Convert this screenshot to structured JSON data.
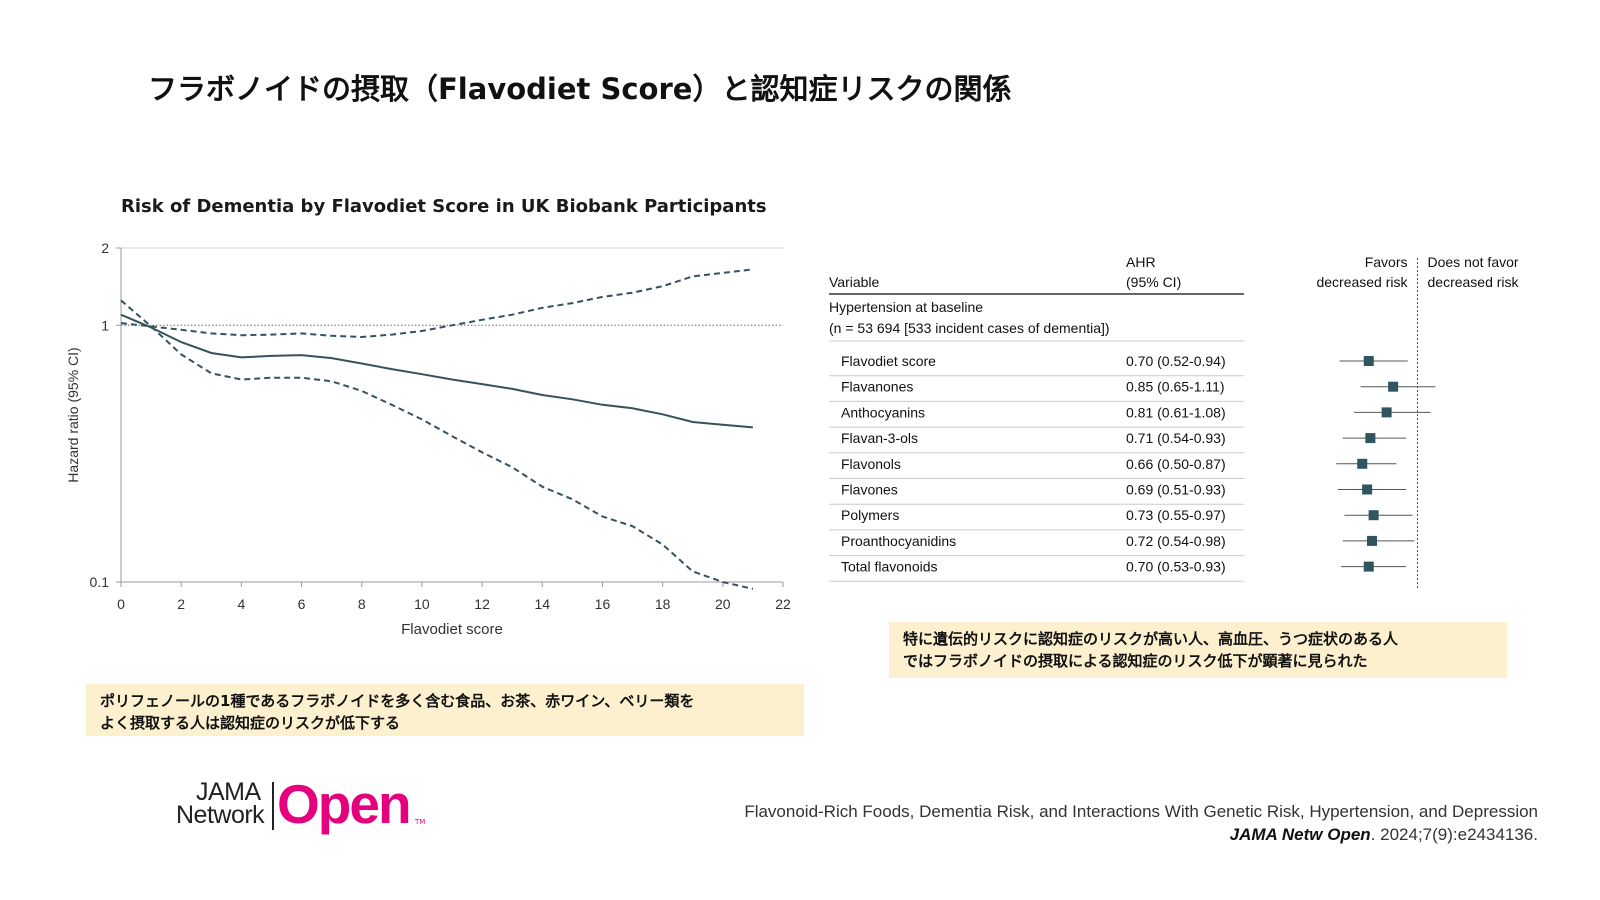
{
  "slide": {
    "title": "フラボノイドの摂取（Flavodiet Score）と認知症リスクの関係"
  },
  "chart_data": [
    {
      "type": "line",
      "title": "Risk of Dementia by Flavodiet Score in UK Biobank Participants",
      "xlabel": "Flavodiet score",
      "ylabel": "Hazard ratio (95% CI)",
      "xlim": [
        0,
        22
      ],
      "ylim": [
        0.1,
        2
      ],
      "yscale": "log",
      "x_ticks": [
        0,
        2,
        4,
        6,
        8,
        10,
        12,
        14,
        16,
        18,
        20,
        22
      ],
      "y_ticks": [
        0.1,
        1,
        2
      ],
      "y_tick_labels": [
        "0.1",
        "1",
        "2"
      ],
      "reference_line": 1,
      "grid": false,
      "x": [
        0,
        1,
        2,
        3,
        4,
        5,
        6,
        7,
        8,
        9,
        10,
        11,
        12,
        13,
        14,
        15,
        16,
        17,
        18,
        19,
        20,
        21
      ],
      "series": [
        {
          "role": "estimate",
          "style": "solid",
          "values": [
            1.1,
            0.98,
            0.86,
            0.78,
            0.75,
            0.76,
            0.765,
            0.745,
            0.71,
            0.675,
            0.645,
            0.615,
            0.59,
            0.565,
            0.535,
            0.515,
            0.49,
            0.475,
            0.45,
            0.42,
            0.41,
            0.4
          ]
        },
        {
          "role": "upper_ci",
          "style": "dashed",
          "values": [
            1.02,
            0.99,
            0.96,
            0.93,
            0.915,
            0.92,
            0.93,
            0.91,
            0.9,
            0.92,
            0.95,
            1.0,
            1.05,
            1.1,
            1.17,
            1.22,
            1.29,
            1.34,
            1.42,
            1.55,
            1.6,
            1.65
          ]
        },
        {
          "role": "lower_ci",
          "style": "dashed",
          "values": [
            1.25,
            0.99,
            0.77,
            0.65,
            0.615,
            0.625,
            0.625,
            0.605,
            0.555,
            0.49,
            0.43,
            0.37,
            0.32,
            0.28,
            0.235,
            0.21,
            0.18,
            0.165,
            0.14,
            0.11,
            0.1,
            0.094
          ]
        }
      ],
      "colors": {
        "line": "#35525d",
        "reference": "#666666",
        "axis": "#9a9a9a"
      }
    },
    {
      "type": "table",
      "subtype": "forest_plot",
      "columns": {
        "variable": "Variable",
        "ahr_line1": "AHR",
        "ahr_line2": "(95% CI)"
      },
      "direction_labels": {
        "left_line1": "Favors",
        "left_line2": "decreased risk",
        "right_line1": "Does not favor",
        "right_line2": "decreased risk"
      },
      "group_label_line1": "Hypertension at baseline",
      "group_label_line2": "(n = 53 694 [533 incident cases of dementia])",
      "xlim": [
        0.4,
        1.6
      ],
      "reference": 1,
      "rows": [
        {
          "variable": "Flavodiet score",
          "ahr": "0.70 (0.52-0.94)",
          "est": 0.7,
          "lo": 0.52,
          "hi": 0.94
        },
        {
          "variable": "Flavanones",
          "ahr": "0.85 (0.65-1.11)",
          "est": 0.85,
          "lo": 0.65,
          "hi": 1.11
        },
        {
          "variable": "Anthocyanins",
          "ahr": "0.81 (0.61-1.08)",
          "est": 0.81,
          "lo": 0.61,
          "hi": 1.08
        },
        {
          "variable": "Flavan-3-ols",
          "ahr": "0.71 (0.54-0.93)",
          "est": 0.71,
          "lo": 0.54,
          "hi": 0.93
        },
        {
          "variable": "Flavonols",
          "ahr": "0.66 (0.50-0.87)",
          "est": 0.66,
          "lo": 0.5,
          "hi": 0.87
        },
        {
          "variable": "Flavones",
          "ahr": "0.69 (0.51-0.93)",
          "est": 0.69,
          "lo": 0.51,
          "hi": 0.93
        },
        {
          "variable": "Polymers",
          "ahr": "0.73 (0.55-0.97)",
          "est": 0.73,
          "lo": 0.55,
          "hi": 0.97
        },
        {
          "variable": "Proanthocyanidins",
          "ahr": "0.72 (0.54-0.98)",
          "est": 0.72,
          "lo": 0.54,
          "hi": 0.98
        },
        {
          "variable": "Total flavonoids",
          "ahr": "0.70 (0.53-0.93)",
          "est": 0.7,
          "lo": 0.53,
          "hi": 0.93
        }
      ],
      "colors": {
        "marker": "#2f5560",
        "whisker": "#555555",
        "rule": "#cccccc"
      }
    }
  ],
  "notes": {
    "left_line1": "ポリフェノールの1種であるフラボノイドを多く含む食品、お茶、赤ワイン、ベリー類を",
    "left_line2": "よく摂取する人は認知症のリスクが低下する",
    "right_line1": "特に遺伝的リスクに認知症のリスクが高い人、高血圧、うつ症状のある人",
    "right_line2": "ではフラボノイドの摂取による認知症のリスク低下が顕著に見られた",
    "background": "#fdf0cf"
  },
  "logo": {
    "line1": "JAMA",
    "line2": "Network",
    "open": "Open",
    "tm": "TM",
    "brand_color": "#e5007e"
  },
  "citation": {
    "line1": "Flavonoid-Rich Foods, Dementia Risk, and Interactions With Genetic Risk, Hypertension, and Depression",
    "journal": "JAMA Netw Open",
    "details": ". 2024;7(9):e2434136."
  }
}
